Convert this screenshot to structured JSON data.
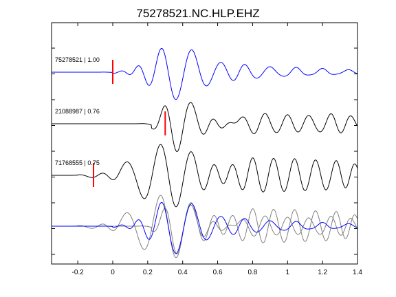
{
  "chart_data": {
    "type": "line",
    "title": "75278521.NC.HLP.EHZ",
    "xlabel": "",
    "ylabel": "",
    "xlim": [
      -0.35,
      1.4
    ],
    "x_ticks": [
      -0.2,
      0,
      0.2,
      0.4,
      0.6,
      0.8,
      1,
      1.2,
      1.4
    ],
    "x_tick_labels": [
      "-0.2",
      "0",
      "0.2",
      "0.4",
      "0.6",
      "0.8",
      "1",
      "1.2",
      "1.4"
    ],
    "grid": false,
    "traces": [
      {
        "label": "75278521 | 1.00",
        "color": "#0000ff",
        "pick_time": 0.0,
        "pick_color": "#ff0000",
        "onset": 0.0,
        "amplitude": 1.0,
        "wavelets": [
          {
            "t": 0.07,
            "f": 7.5,
            "a": 0.1
          },
          {
            "t": 0.15,
            "f": 7.5,
            "a": 0.25
          },
          {
            "t": 0.275,
            "f": 6.5,
            "a": 0.55
          },
          {
            "t": 0.36,
            "f": 6.0,
            "a": -0.65
          },
          {
            "t": 0.46,
            "f": 6.0,
            "a": 0.6
          },
          {
            "t": 0.62,
            "f": 6.0,
            "a": 0.3
          },
          {
            "t": 0.75,
            "f": 7.0,
            "a": 0.28
          },
          {
            "t": 0.9,
            "f": 7.0,
            "a": 0.2
          },
          {
            "t": 1.05,
            "f": 8.0,
            "a": 0.18
          },
          {
            "t": 1.2,
            "f": 8.0,
            "a": 0.15
          },
          {
            "t": 1.35,
            "f": 8.0,
            "a": 0.1
          }
        ]
      },
      {
        "label": "21088987 | 0.76",
        "color": "#000000",
        "pick_time": 0.3,
        "pick_color": "#ff0000",
        "onset": 0.22,
        "amplitude": 1.0,
        "wavelets": [
          {
            "t": 0.31,
            "f": 7.0,
            "a": 0.3
          },
          {
            "t": 0.36,
            "f": 6.5,
            "a": -0.75
          },
          {
            "t": 0.46,
            "f": 6.0,
            "a": 0.55
          },
          {
            "t": 0.57,
            "f": 7.0,
            "a": 0.3
          },
          {
            "t": 0.67,
            "f": 7.0,
            "a": 0.3
          },
          {
            "t": 0.74,
            "f": 7.0,
            "a": 0.4
          },
          {
            "t": 0.87,
            "f": 7.5,
            "a": 0.35
          },
          {
            "t": 1.0,
            "f": 8.0,
            "a": 0.3
          },
          {
            "t": 1.12,
            "f": 8.0,
            "a": 0.28
          },
          {
            "t": 1.25,
            "f": 8.0,
            "a": 0.35
          },
          {
            "t": 1.36,
            "f": 8.0,
            "a": 0.28
          }
        ]
      },
      {
        "label": "71768555 | 0.75",
        "color": "#000000",
        "pick_time": -0.11,
        "pick_color": "#ff0000",
        "onset": -0.2,
        "amplitude": 1.0,
        "wavelets": [
          {
            "t": -0.04,
            "f": 6.0,
            "a": 0.22
          },
          {
            "t": 0.06,
            "f": 5.5,
            "a": 0.38
          },
          {
            "t": 0.18,
            "f": 5.5,
            "a": -0.5
          },
          {
            "t": 0.27,
            "f": 5.5,
            "a": 0.6
          },
          {
            "t": 0.36,
            "f": 6.0,
            "a": -0.7
          },
          {
            "t": 0.46,
            "f": 6.0,
            "a": 0.55
          },
          {
            "t": 0.58,
            "f": 6.5,
            "a": 0.5
          },
          {
            "t": 0.68,
            "f": 7.0,
            "a": 0.45
          },
          {
            "t": 0.8,
            "f": 7.5,
            "a": 0.6
          },
          {
            "t": 0.92,
            "f": 7.5,
            "a": 0.55
          },
          {
            "t": 1.04,
            "f": 7.5,
            "a": 0.55
          },
          {
            "t": 1.16,
            "f": 7.5,
            "a": 0.5
          },
          {
            "t": 1.28,
            "f": 7.5,
            "a": 0.5
          },
          {
            "t": 1.38,
            "f": 8.0,
            "a": 0.45
          }
        ]
      }
    ],
    "overlay": {
      "description_none": "",
      "members": [
        0,
        1,
        2
      ],
      "colors": [
        "#0000ff",
        "#808080",
        "#808080"
      ]
    }
  }
}
